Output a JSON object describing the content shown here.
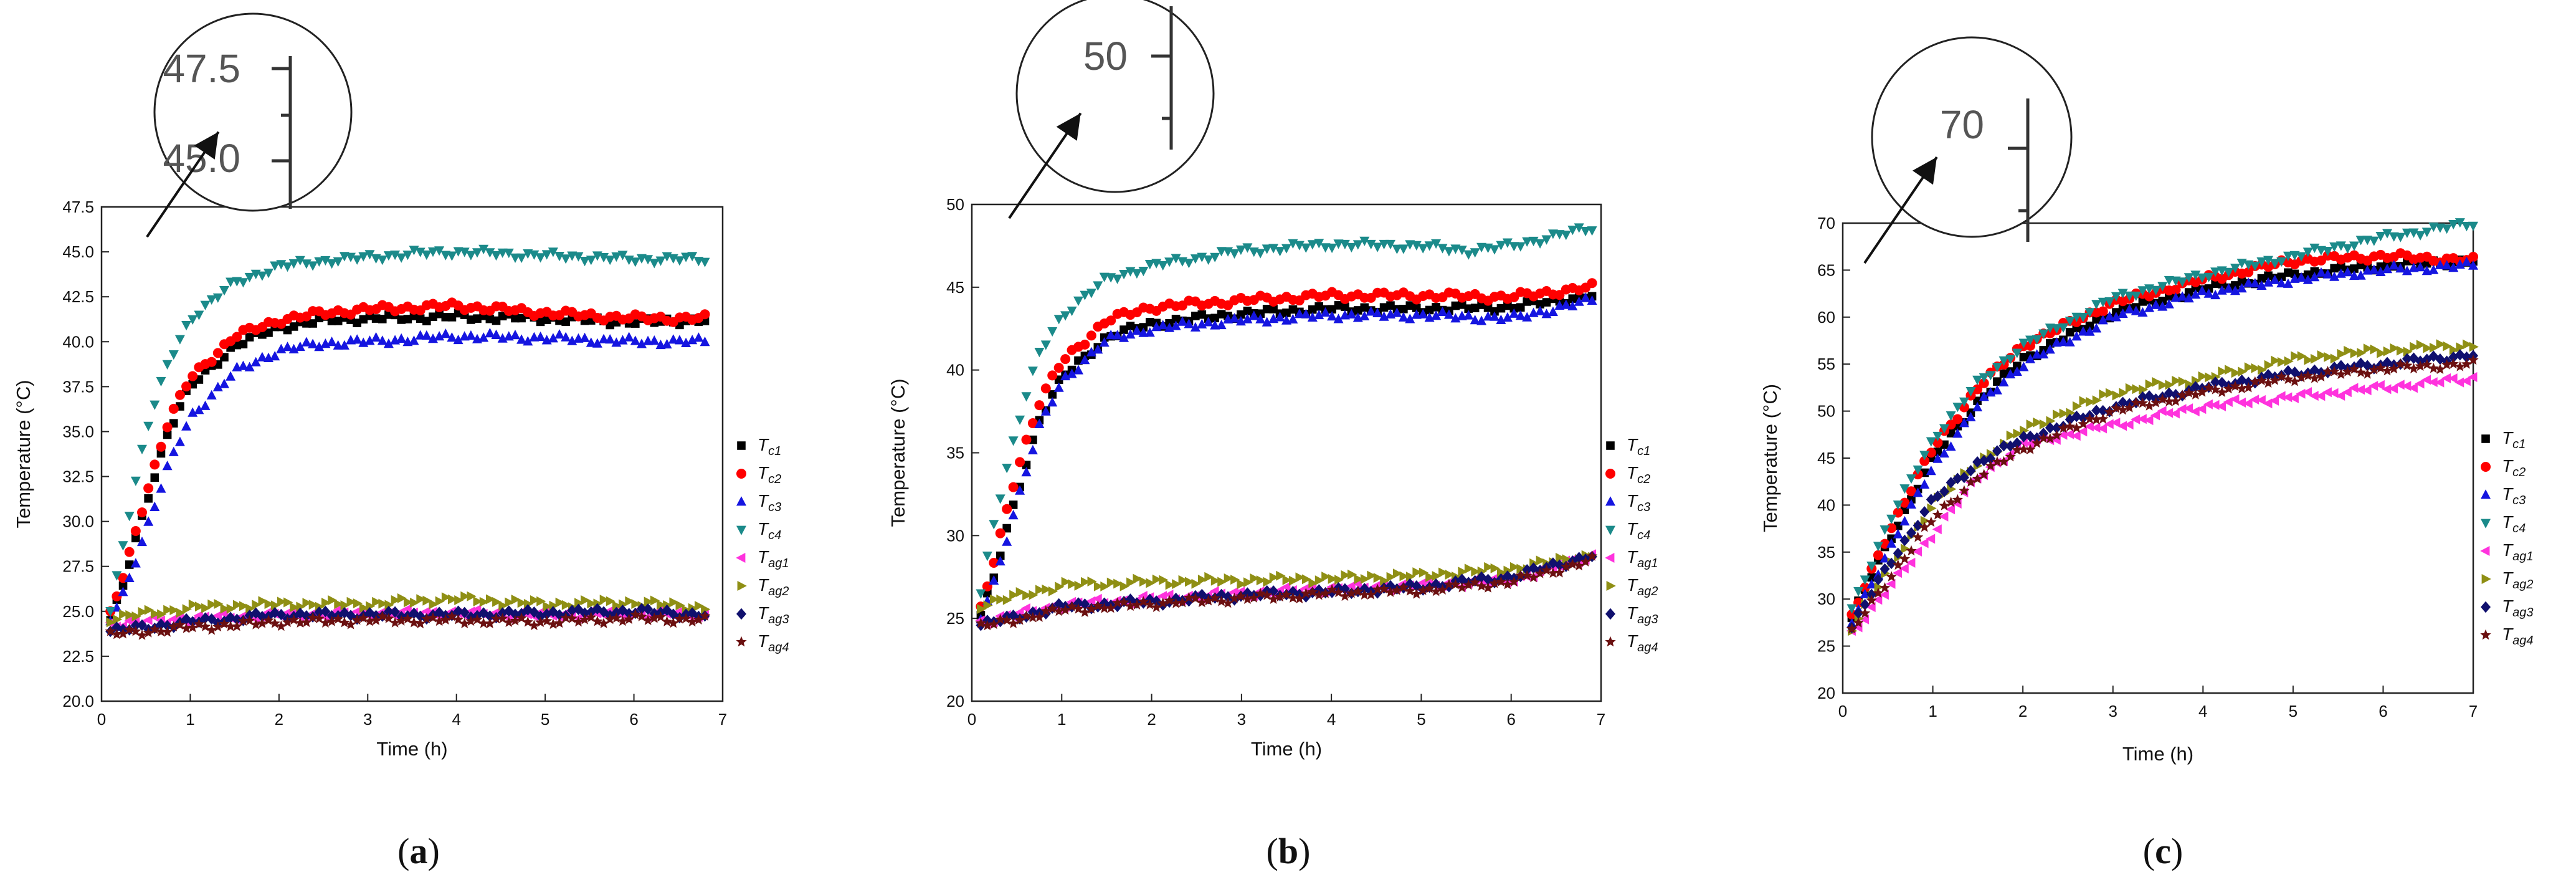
{
  "chart_data": [
    {
      "id": "a",
      "type": "scatter",
      "panel_label": "a",
      "xlabel": "Time (h)",
      "ylabel": "Temperature (°C)",
      "xlim": [
        0,
        7
      ],
      "ylim": [
        20,
        47.5
      ],
      "xticks": [
        "0",
        "1",
        "2",
        "3",
        "4",
        "5",
        "6",
        "7"
      ],
      "yticks": [
        "20.0",
        "22.5",
        "25.0",
        "27.5",
        "30.0",
        "32.5",
        "35.0",
        "37.5",
        "40.0",
        "42.5",
        "45.0",
        "47.5"
      ],
      "zoom_labels": [
        "47.5",
        "45.0"
      ],
      "series": [
        {
          "name": "T",
          "sub": "c1",
          "color": "#000000",
          "marker": "square",
          "x": [
            0.1,
            0.25,
            0.5,
            0.75,
            1,
            1.5,
            2,
            2.5,
            3,
            4,
            5,
            6,
            6.8
          ],
          "y": [
            24.5,
            26.5,
            31,
            35,
            37.5,
            39.8,
            40.8,
            41.2,
            41.3,
            41.4,
            41.3,
            41.1,
            41.2
          ]
        },
        {
          "name": "T",
          "sub": "c2",
          "color": "#ff0000",
          "marker": "circle",
          "x": [
            0.1,
            0.25,
            0.5,
            0.75,
            1,
            1.5,
            2,
            2.5,
            3,
            4,
            5,
            6,
            6.8
          ],
          "y": [
            24.8,
            27,
            31.5,
            35.5,
            38,
            40.3,
            41.2,
            41.6,
            41.8,
            42,
            41.6,
            41.3,
            41.3
          ]
        },
        {
          "name": "T",
          "sub": "c3",
          "color": "#1515e0",
          "marker": "triangle-up",
          "x": [
            0.1,
            0.25,
            0.5,
            0.75,
            1,
            1.5,
            2,
            2.5,
            3,
            4,
            5,
            6,
            6.8
          ],
          "y": [
            24.5,
            26,
            29.5,
            33,
            35.8,
            38.3,
            39.5,
            39.9,
            40,
            40.3,
            40.2,
            40,
            40
          ]
        },
        {
          "name": "T",
          "sub": "c4",
          "color": "#1b8a8a",
          "marker": "triangle-down",
          "x": [
            0.1,
            0.25,
            0.5,
            0.75,
            1,
            1.5,
            2,
            2.5,
            3,
            3.5,
            4,
            5,
            6,
            6.8
          ],
          "y": [
            25,
            29,
            35,
            38.8,
            41.3,
            43.3,
            44.2,
            44.5,
            44.7,
            44.9,
            45,
            44.8,
            44.6,
            44.6
          ]
        },
        {
          "name": "T",
          "sub": "ag1",
          "color": "#ff33dd",
          "marker": "triangle-left",
          "x": [
            0.1,
            1,
            2,
            3,
            4,
            5,
            6,
            6.8
          ],
          "y": [
            24.3,
            24.6,
            24.8,
            24.9,
            24.9,
            24.8,
            24.9,
            24.8
          ]
        },
        {
          "name": "T",
          "sub": "ag2",
          "color": "#8f8f14",
          "marker": "triangle-right",
          "x": [
            0.1,
            1,
            2,
            3,
            4,
            5,
            6,
            6.8
          ],
          "y": [
            24.6,
            25.2,
            25.4,
            25.4,
            25.7,
            25.4,
            25.5,
            25.2
          ]
        },
        {
          "name": "T",
          "sub": "ag3",
          "color": "#10106e",
          "marker": "diamond",
          "x": [
            0.1,
            1,
            2,
            3,
            4,
            5,
            6,
            6.8
          ],
          "y": [
            23.9,
            24.4,
            24.8,
            24.8,
            24.8,
            24.9,
            25,
            24.8
          ]
        },
        {
          "name": "T",
          "sub": "ag4",
          "color": "#6b1010",
          "marker": "star",
          "x": [
            0.1,
            1,
            2,
            3,
            4,
            5,
            6,
            6.8
          ],
          "y": [
            23.7,
            24.1,
            24.4,
            24.5,
            24.5,
            24.4,
            24.6,
            24.5
          ]
        }
      ]
    },
    {
      "id": "b",
      "type": "scatter",
      "panel_label": "b",
      "xlabel": "Time (h)",
      "ylabel": "Temperature (°C)",
      "xlim": [
        0,
        7
      ],
      "ylim": [
        20,
        50
      ],
      "xticks": [
        "0",
        "1",
        "2",
        "3",
        "4",
        "5",
        "6",
        "7"
      ],
      "yticks": [
        "20",
        "25",
        "30",
        "35",
        "40",
        "45",
        "50"
      ],
      "zoom_labels": [
        "50"
      ],
      "series": [
        {
          "name": "T",
          "sub": "c1",
          "color": "#000000",
          "marker": "square",
          "x": [
            0.1,
            0.25,
            0.5,
            0.75,
            1,
            1.5,
            2,
            3,
            4,
            5,
            6,
            6.9
          ],
          "y": [
            25.2,
            27.5,
            32.5,
            37,
            39.5,
            42,
            42.8,
            43.4,
            43.7,
            43.7,
            43.8,
            44.5
          ]
        },
        {
          "name": "T",
          "sub": "c2",
          "color": "#ff0000",
          "marker": "circle",
          "x": [
            0.1,
            0.25,
            0.5,
            0.75,
            1,
            1.5,
            2,
            3,
            4,
            5,
            6,
            6.9
          ],
          "y": [
            25.5,
            28.5,
            34,
            38,
            40.5,
            43,
            43.8,
            44.2,
            44.5,
            44.5,
            44.4,
            45
          ]
        },
        {
          "name": "T",
          "sub": "c3",
          "color": "#1515e0",
          "marker": "triangle-up",
          "x": [
            0.1,
            0.25,
            0.5,
            0.75,
            1,
            1.5,
            2,
            3,
            4,
            5,
            6,
            6.9
          ],
          "y": [
            25,
            27.2,
            32,
            36.5,
            39.3,
            41.8,
            42.5,
            43,
            43.3,
            43.3,
            43.1,
            44.2
          ]
        },
        {
          "name": "T",
          "sub": "c4",
          "color": "#1b8a8a",
          "marker": "triangle-down",
          "x": [
            0.1,
            0.25,
            0.5,
            0.75,
            1,
            1.5,
            2,
            3,
            4,
            5,
            5.5,
            6,
            6.9
          ],
          "y": [
            26.5,
            31,
            36.5,
            41,
            43.3,
            45.5,
            46.3,
            47.2,
            47.6,
            47.5,
            47.2,
            47.5,
            48.6
          ]
        },
        {
          "name": "T",
          "sub": "ag1",
          "color": "#ff33dd",
          "marker": "triangle-left",
          "x": [
            0.1,
            1,
            2,
            3,
            4,
            5,
            6,
            6.9
          ],
          "y": [
            24.8,
            25.8,
            26.2,
            26.5,
            26.8,
            27,
            27.3,
            28.8
          ]
        },
        {
          "name": "T",
          "sub": "ag2",
          "color": "#8f8f14",
          "marker": "triangle-right",
          "x": [
            0.1,
            1,
            2,
            3,
            4,
            5,
            6,
            6.9
          ],
          "y": [
            25.8,
            27,
            27.2,
            27.3,
            27.4,
            27.6,
            28,
            28.8
          ]
        },
        {
          "name": "T",
          "sub": "ag3",
          "color": "#10106e",
          "marker": "diamond",
          "x": [
            0.1,
            1,
            2,
            3,
            4,
            5,
            6,
            6.9
          ],
          "y": [
            24.6,
            25.7,
            26,
            26.4,
            26.6,
            26.9,
            27.5,
            28.8
          ]
        },
        {
          "name": "T",
          "sub": "ag4",
          "color": "#6b1010",
          "marker": "star",
          "x": [
            0.1,
            1,
            2,
            3,
            4,
            5,
            6,
            6.9
          ],
          "y": [
            24.5,
            25.5,
            25.9,
            26.2,
            26.5,
            26.7,
            27.2,
            28.5
          ]
        }
      ]
    },
    {
      "id": "c",
      "type": "scatter",
      "panel_label": "c",
      "xlabel": "Time (h)",
      "ylabel": "Temperature (°C)",
      "xlim": [
        0,
        7
      ],
      "ylim": [
        20,
        70
      ],
      "xticks": [
        "0",
        "1",
        "2",
        "3",
        "4",
        "5",
        "6",
        "7"
      ],
      "yticks": [
        "20",
        "25",
        "30",
        "35",
        "40",
        "45",
        "50",
        "55",
        "60",
        "65",
        "70"
      ],
      "zoom_labels": [
        "70"
      ],
      "series": [
        {
          "name": "T",
          "sub": "c1",
          "color": "#000000",
          "marker": "square",
          "x": [
            0.1,
            0.5,
            1,
            1.5,
            2,
            3,
            4,
            5,
            6,
            7
          ],
          "y": [
            28,
            36,
            45,
            51,
            55.5,
            60.5,
            63,
            64.5,
            65.5,
            66
          ]
        },
        {
          "name": "T",
          "sub": "c2",
          "color": "#ff0000",
          "marker": "circle",
          "x": [
            0.1,
            0.5,
            1,
            1.5,
            2,
            3,
            4,
            5,
            6,
            7
          ],
          "y": [
            28,
            37,
            46,
            52.5,
            57,
            61.5,
            64,
            66,
            66.5,
            66
          ]
        },
        {
          "name": "T",
          "sub": "c3",
          "color": "#1515e0",
          "marker": "triangle-up",
          "x": [
            0.1,
            0.5,
            1,
            1.5,
            2,
            3,
            4,
            5,
            6,
            7
          ],
          "y": [
            27.5,
            35,
            44,
            50.5,
            55,
            60,
            62.5,
            64,
            65,
            65.5
          ]
        },
        {
          "name": "T",
          "sub": "c4",
          "color": "#1b8a8a",
          "marker": "triangle-down",
          "x": [
            0.1,
            0.5,
            1,
            1.5,
            2,
            3,
            4,
            5,
            6,
            7
          ],
          "y": [
            29,
            38,
            47,
            53,
            57,
            62,
            64.5,
            66.5,
            68.5,
            70
          ]
        },
        {
          "name": "T",
          "sub": "ag1",
          "color": "#ff33dd",
          "marker": "triangle-left",
          "x": [
            0.1,
            0.5,
            1,
            1.5,
            2,
            3,
            4,
            5,
            6,
            7
          ],
          "y": [
            26.5,
            31,
            37,
            43,
            46.5,
            48.5,
            50.5,
            51.5,
            52.5,
            53.5
          ]
        },
        {
          "name": "T",
          "sub": "ag2",
          "color": "#8f8f14",
          "marker": "triangle-right",
          "x": [
            0.1,
            0.5,
            1,
            1.5,
            2,
            3,
            4,
            5,
            6,
            7
          ],
          "y": [
            27,
            33,
            40,
            44.5,
            48,
            52,
            53.5,
            55.5,
            56.5,
            57
          ]
        },
        {
          "name": "T",
          "sub": "ag3",
          "color": "#10106e",
          "marker": "diamond",
          "x": [
            0.1,
            0.5,
            1,
            1.5,
            2,
            3,
            4,
            5,
            6,
            7
          ],
          "y": [
            27,
            33.5,
            40.5,
            44.5,
            47,
            50.5,
            52.5,
            54,
            55,
            56
          ]
        },
        {
          "name": "T",
          "sub": "ag4",
          "color": "#6b1010",
          "marker": "star",
          "x": [
            0.1,
            0.5,
            1,
            1.5,
            2,
            3,
            4,
            5,
            6,
            7
          ],
          "y": [
            26.5,
            32,
            38.5,
            43,
            46,
            50,
            52,
            53.5,
            54.5,
            55
          ]
        }
      ]
    }
  ]
}
